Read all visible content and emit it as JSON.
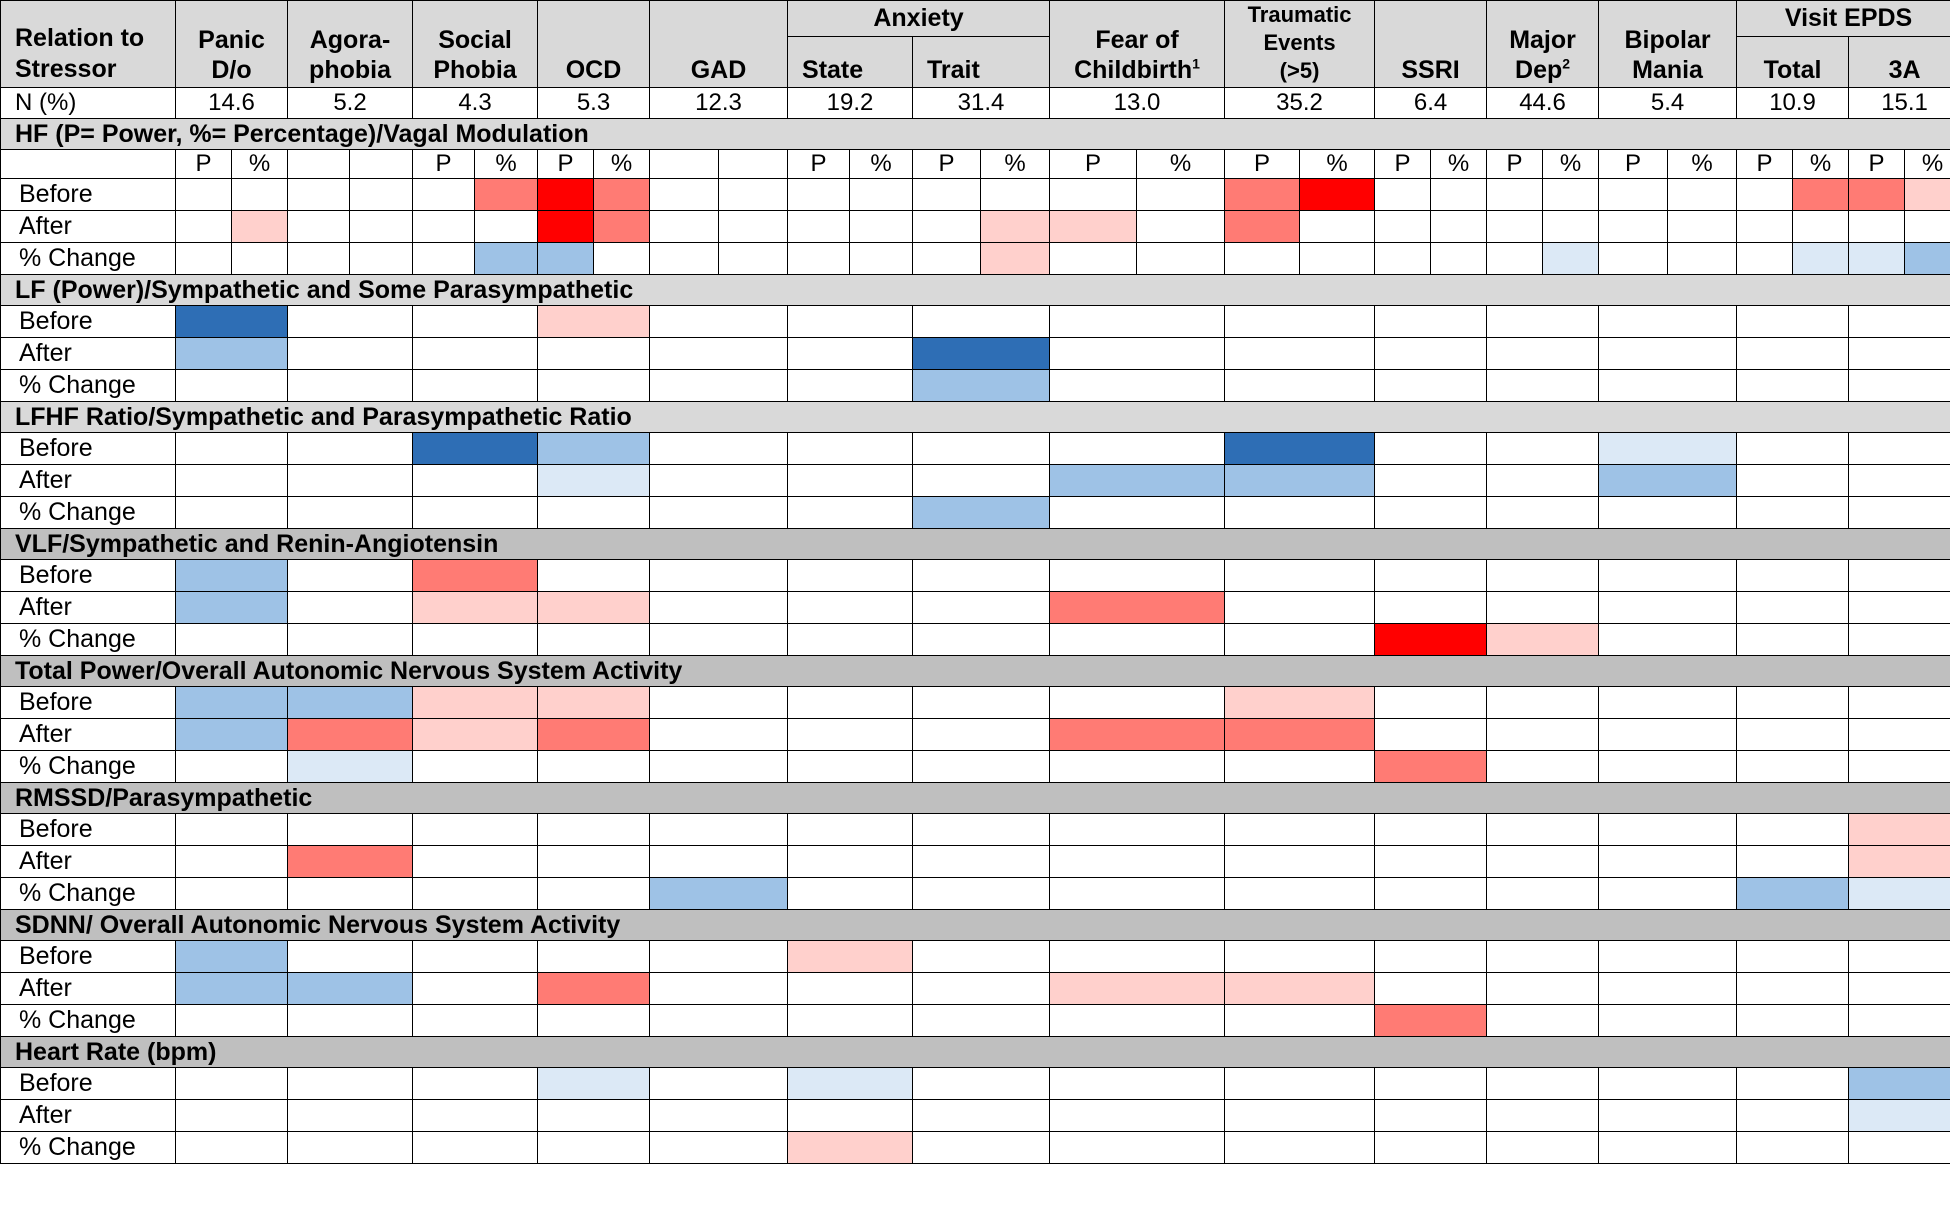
{
  "header": {
    "relation": "Relation to Stressor",
    "anxiety": "Anxiety",
    "visit_epds": "Visit EPDS",
    "columns": [
      {
        "key": "panic",
        "line1": "Panic",
        "line2": "D/o"
      },
      {
        "key": "agora",
        "line1": "Agora-",
        "line2": "phobia"
      },
      {
        "key": "social",
        "line1": "Social",
        "line2": "Phobia"
      },
      {
        "key": "ocd",
        "line1": "",
        "line2": "OCD"
      },
      {
        "key": "gad",
        "line1": "",
        "line2": "GAD"
      },
      {
        "key": "state",
        "line1": "",
        "line2": "State"
      },
      {
        "key": "trait",
        "line1": "",
        "line2": "Trait"
      },
      {
        "key": "fear",
        "line1": "Fear of",
        "line2": "Childbirth",
        "sup": "1"
      },
      {
        "key": "trauma",
        "line1": "Traumatic",
        "line2": "Events",
        "line3": "(>5)"
      },
      {
        "key": "ssri",
        "line1": "",
        "line2": "SSRI"
      },
      {
        "key": "majdep",
        "line1": "Major",
        "line2": "Dep",
        "sup": "2"
      },
      {
        "key": "bipolar",
        "line1": "Bipolar",
        "line2": "Mania"
      },
      {
        "key": "total",
        "line1": "",
        "line2": "Total"
      },
      {
        "key": "threeA",
        "line1": "",
        "line2": "3A"
      }
    ]
  },
  "n_row": {
    "label": "N (%)",
    "values": [
      "14.6",
      "5.2",
      "4.3",
      "5.3",
      "12.3",
      "19.2",
      "31.4",
      "13.0",
      "35.2",
      "6.4",
      "44.6",
      "5.4",
      "10.9",
      "15.1"
    ]
  },
  "sections": [
    {
      "title": "HF (P= Power, %= Percentage)/Vagal Modulation",
      "shade": "light",
      "split": true,
      "subheader": [
        "P",
        "%",
        "",
        "",
        "P",
        "%",
        "P",
        "%",
        "",
        "",
        "P",
        "%",
        "P",
        "%",
        "P",
        "%",
        "P",
        "%",
        "P",
        "%",
        "P",
        "%",
        "P",
        "%",
        "P",
        "%",
        "P",
        "%"
      ],
      "rows": [
        {
          "label": "Before",
          "cells": [
            "",
            "",
            "",
            "",
            "",
            "c2",
            "c1",
            "c2",
            "",
            "",
            "",
            "",
            "",
            "",
            "",
            "",
            "c2",
            "c1",
            "",
            "",
            "",
            "",
            "",
            "",
            "",
            "c2",
            "c2",
            "c3"
          ]
        },
        {
          "label": "After",
          "cells": [
            "",
            "c3",
            "",
            "",
            "",
            "",
            "c1",
            "c2",
            "",
            "",
            "",
            "",
            "",
            "c3",
            "c3",
            "",
            "c2",
            "",
            "",
            "",
            "",
            "",
            "",
            "",
            "",
            "",
            "",
            ""
          ]
        },
        {
          "label": "% Change",
          "cells": [
            "",
            "",
            "",
            "",
            "",
            "b2",
            "b2",
            "",
            "",
            "",
            "",
            "",
            "",
            "c3",
            "",
            "",
            "",
            "",
            "",
            "",
            "",
            "b3",
            "",
            "",
            "",
            "b3",
            "b3",
            "b2"
          ]
        }
      ]
    },
    {
      "title": "LF (Power)/Sympathetic and Some Parasympathetic",
      "shade": "light",
      "rows": [
        {
          "label": "Before",
          "cells": [
            "b1",
            "",
            "",
            "c3",
            "",
            "",
            "",
            "",
            "",
            "",
            "",
            "",
            "",
            ""
          ]
        },
        {
          "label": "After",
          "cells": [
            "b2",
            "",
            "",
            "",
            "",
            "",
            "b1",
            "",
            "",
            "",
            "",
            "",
            "",
            ""
          ]
        },
        {
          "label": "% Change",
          "cells": [
            "",
            "",
            "",
            "",
            "",
            "",
            "b2",
            "",
            "",
            "",
            "",
            "",
            "",
            ""
          ]
        }
      ]
    },
    {
      "title": "LFHF Ratio/Sympathetic and Parasympathetic Ratio",
      "shade": "light",
      "rows": [
        {
          "label": "Before",
          "cells": [
            "",
            "",
            "b1",
            "b2",
            "",
            "",
            "",
            "",
            "b1",
            "",
            "",
            "b3",
            "",
            ""
          ]
        },
        {
          "label": "After",
          "cells": [
            "",
            "",
            "",
            "b3",
            "",
            "",
            "",
            "b2",
            "b2",
            "",
            "",
            "b2",
            "",
            ""
          ]
        },
        {
          "label": "% Change",
          "cells": [
            "",
            "",
            "",
            "",
            "",
            "",
            "b2",
            "",
            "",
            "",
            "",
            "",
            "",
            ""
          ]
        }
      ]
    },
    {
      "title": "VLF/Sympathetic and Renin-Angiotensin",
      "shade": "dark",
      "rows": [
        {
          "label": "Before",
          "cells": [
            "b2",
            "",
            "c2",
            "",
            "",
            "",
            "",
            "",
            "",
            "",
            "",
            "",
            "",
            ""
          ]
        },
        {
          "label": "After",
          "cells": [
            "b2",
            "",
            "c3",
            "c3",
            "",
            "",
            "",
            "c2",
            "",
            "",
            "",
            "",
            "",
            ""
          ]
        },
        {
          "label": "% Change",
          "cells": [
            "",
            "",
            "",
            "",
            "",
            "",
            "",
            "",
            "",
            "c1",
            "c3",
            "",
            "",
            ""
          ]
        }
      ]
    },
    {
      "title": "Total Power/Overall Autonomic Nervous System Activity",
      "shade": "dark",
      "rows": [
        {
          "label": "Before",
          "cells": [
            "b2",
            "b2",
            "c3",
            "c3",
            "",
            "",
            "",
            "",
            "c3",
            "",
            "",
            "",
            "",
            ""
          ]
        },
        {
          "label": "After",
          "cells": [
            "b2",
            "c2",
            "c3",
            "c2",
            "",
            "",
            "",
            "c2",
            "c2",
            "",
            "",
            "",
            "",
            ""
          ]
        },
        {
          "label": "% Change",
          "cells": [
            "",
            "b3",
            "",
            "",
            "",
            "",
            "",
            "",
            "",
            "c2",
            "",
            "",
            "",
            ""
          ]
        }
      ]
    },
    {
      "title": "RMSSD/Parasympathetic",
      "shade": "dark",
      "rows": [
        {
          "label": "Before",
          "cells": [
            "",
            "",
            "",
            "",
            "",
            "",
            "",
            "",
            "",
            "",
            "",
            "",
            "",
            "c3"
          ]
        },
        {
          "label": "After",
          "cells": [
            "",
            "c2",
            "",
            "",
            "",
            "",
            "",
            "",
            "",
            "",
            "",
            "",
            "",
            "c3"
          ]
        },
        {
          "label": "% Change",
          "cells": [
            "",
            "",
            "",
            "",
            "b2",
            "",
            "",
            "",
            "",
            "",
            "",
            "",
            "b2",
            "b3"
          ]
        }
      ]
    },
    {
      "title": "SDNN/ Overall Autonomic Nervous System Activity",
      "shade": "dark",
      "rows": [
        {
          "label": "Before",
          "cells": [
            "b2",
            "",
            "",
            "",
            "",
            "c3",
            "",
            "",
            "",
            "",
            "",
            "",
            "",
            ""
          ]
        },
        {
          "label": "After",
          "cells": [
            "b2",
            "b2",
            "",
            "c2",
            "",
            "",
            "",
            "c3",
            "c3",
            "",
            "",
            "",
            "",
            ""
          ]
        },
        {
          "label": "% Change",
          "cells": [
            "",
            "",
            "",
            "",
            "",
            "",
            "",
            "",
            "",
            "c2",
            "",
            "",
            "",
            ""
          ]
        }
      ]
    },
    {
      "title": "Heart Rate (bpm)",
      "shade": "dark",
      "rows": [
        {
          "label": "Before",
          "cells": [
            "",
            "",
            "",
            "b3",
            "",
            "b3",
            "",
            "",
            "",
            "",
            "",
            "",
            "",
            "b2"
          ]
        },
        {
          "label": "After",
          "cells": [
            "",
            "",
            "",
            "",
            "",
            "",
            "",
            "",
            "",
            "",
            "",
            "",
            "",
            "b3"
          ]
        },
        {
          "label": "% Change",
          "cells": [
            "",
            "",
            "",
            "",
            "",
            "c3",
            "",
            "",
            "",
            "",
            "",
            "",
            "",
            ""
          ]
        }
      ]
    }
  ],
  "colors": {
    "c1": "#ff0000",
    "c2": "#ff7b74",
    "c3": "#ffd0cc",
    "b1": "#2e6eb5",
    "b2": "#9ec2e6",
    "b3": "#dce9f6",
    "header_bg": "#d9d9d9",
    "section_dark_bg": "#bfbfbf"
  }
}
